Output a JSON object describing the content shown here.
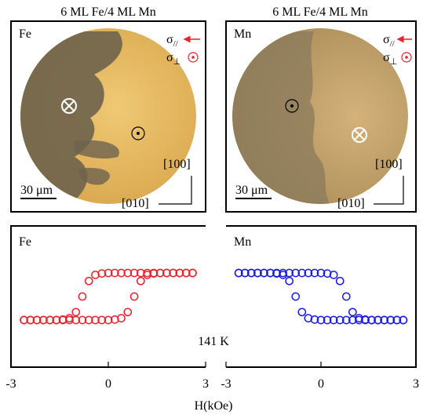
{
  "panels": [
    {
      "title": "6 ML Fe/4 ML Mn",
      "label": "Fe",
      "parallel": {
        "symbol": "σ",
        "subscript": "//"
      },
      "perpendicular": {
        "symbol": "σ",
        "subscript": "⊥"
      },
      "axis_y": "[100]",
      "axis_x": "[010]",
      "scale_bar": "30 μm"
    },
    {
      "title": "6 ML Fe/4 ML Mn",
      "label": "Mn",
      "parallel": {
        "symbol": "σ",
        "subscript": "//"
      },
      "perpendicular": {
        "symbol": "σ",
        "subscript": "⊥"
      },
      "axis_y": "[100]",
      "axis_x": "[010]",
      "scale_bar": "30 μm"
    }
  ],
  "figure": {
    "xlabel": "H(kOe)",
    "annotation": "141 K"
  },
  "chart_data": [
    {
      "type": "scatter",
      "label": "Fe",
      "xlim": [
        -3,
        3
      ],
      "xticks": [
        -3,
        0,
        3
      ],
      "ylim": [
        -3,
        3
      ],
      "x": [
        -2.6,
        -2.4,
        -2.2,
        -2,
        -1.8,
        -1.6,
        -1.4,
        -1.2,
        -1,
        -0.8,
        -0.6,
        -0.4,
        -0.2,
        0,
        0.2,
        0.4,
        0.6,
        0.8,
        1,
        1.2,
        1.4,
        1.6,
        1.8,
        2,
        2.2,
        2.4,
        2.6
      ],
      "series": [
        {
          "color": "#e8202a",
          "values": [
            -1,
            -1,
            -1,
            -1,
            -1,
            -1,
            -1,
            -1,
            -1,
            -1,
            -1,
            -1,
            -1,
            -1,
            -0.98,
            -0.92,
            -0.66,
            0,
            0.66,
            0.92,
            0.98,
            1,
            1,
            1,
            1,
            1,
            1
          ]
        },
        {
          "color": "#e8202a",
          "values": [
            -1,
            -1,
            -1,
            -1,
            -1,
            -1,
            -0.98,
            -0.92,
            -0.66,
            0,
            0.66,
            0.92,
            0.98,
            1,
            1,
            1,
            1,
            1,
            1,
            1,
            1,
            1,
            1,
            1,
            1,
            1,
            1
          ]
        }
      ]
    },
    {
      "type": "scatter",
      "label": "Mn",
      "xlim": [
        -3,
        3
      ],
      "xticks": [
        -3,
        0,
        3
      ],
      "ylim": [
        -3,
        3
      ],
      "x": [
        -2.6,
        -2.4,
        -2.2,
        -2,
        -1.8,
        -1.6,
        -1.4,
        -1.2,
        -1,
        -0.8,
        -0.6,
        -0.4,
        -0.2,
        0,
        0.2,
        0.4,
        0.6,
        0.8,
        1,
        1.2,
        1.4,
        1.6,
        1.8,
        2,
        2.2,
        2.4,
        2.6
      ],
      "series": [
        {
          "color": "#1a1adf",
          "values": [
            1,
            1,
            1,
            1,
            1,
            1,
            1,
            1,
            1,
            1,
            1,
            1,
            1,
            1,
            0.98,
            0.92,
            0.66,
            0,
            -0.66,
            -0.92,
            -0.98,
            -1,
            -1,
            -1,
            -1,
            -1,
            -1
          ]
        },
        {
          "color": "#1a1adf",
          "values": [
            1,
            1,
            1,
            1,
            1,
            1,
            0.98,
            0.92,
            0.66,
            0,
            -0.66,
            -0.92,
            -0.98,
            -1,
            -1,
            -1,
            -1,
            -1,
            -1,
            -1,
            -1,
            -1,
            -1,
            -1,
            -1,
            -1,
            -1
          ]
        }
      ]
    }
  ]
}
